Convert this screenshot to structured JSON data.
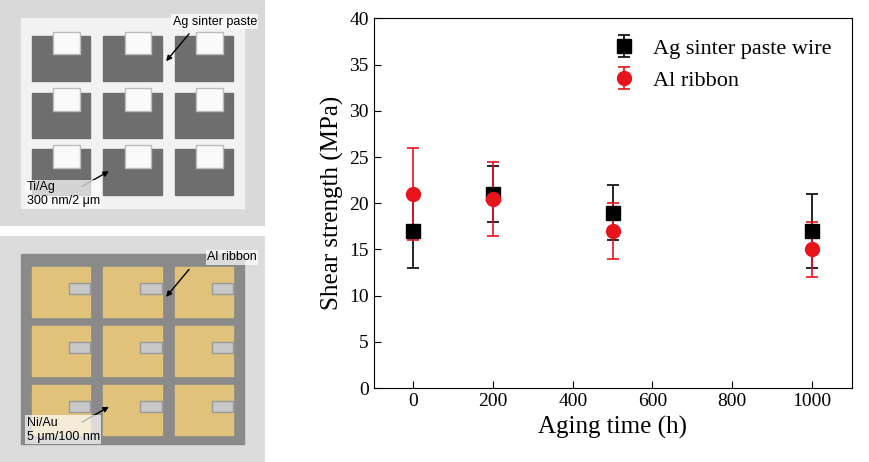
{
  "chart_data": {
    "type": "scatter",
    "xlabel": "Aging time (h)",
    "ylabel": "Shear strength (MPa)",
    "x": [
      0,
      200,
      500,
      1000
    ],
    "series": [
      {
        "name": "Ag sinter paste wire",
        "color": "#000000",
        "marker": "square",
        "values": [
          17,
          21,
          19,
          17
        ],
        "errors": [
          4,
          3,
          3,
          4
        ]
      },
      {
        "name": "Al ribbon",
        "color": "#e8141c",
        "marker": "circle",
        "values": [
          21,
          20.5,
          17,
          15
        ],
        "errors": [
          5,
          4,
          3,
          3
        ]
      }
    ],
    "xlim": [
      -100,
      1100
    ],
    "xticks": [
      0,
      200,
      400,
      600,
      800,
      1000
    ],
    "ylim": [
      0,
      40
    ],
    "yticks": [
      0,
      5,
      10,
      15,
      20,
      25,
      30,
      35,
      40
    ],
    "legend": "upper right"
  },
  "photos": [
    {
      "labels": [
        "Ag sinter paste",
        "Ti/Ag\n300 nm/2 μm"
      ]
    },
    {
      "labels": [
        "Al ribbon",
        "Ni/Au\n5 μm/100 nm"
      ]
    }
  ]
}
